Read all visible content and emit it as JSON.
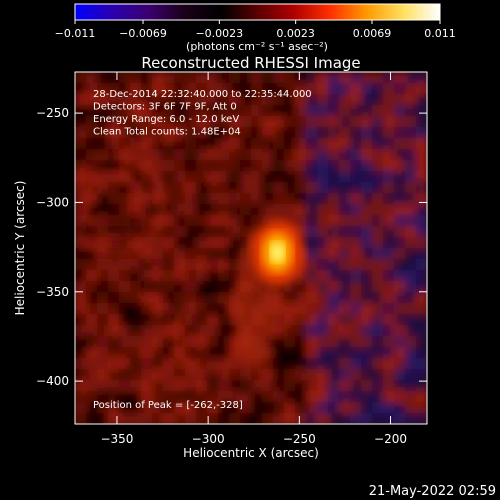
{
  "colorbar": {
    "ticks": [
      "-0.011",
      "-0.0069",
      "-0.0023",
      "0.0023",
      "0.0069",
      "0.011"
    ],
    "unit_label": "(photons cm⁻² s⁻¹ asec⁻²)",
    "colors": [
      "#0000ff",
      "#2a00b0",
      "#3a0070",
      "#1a0018",
      "#000000",
      "#5a0000",
      "#b00000",
      "#ff3000",
      "#ff9a00",
      "#ffe060",
      "#ffffff"
    ],
    "range": [
      -0.011,
      0.011
    ]
  },
  "chart_data": {
    "type": "heatmap",
    "title": "Reconstructed RHESSI Image",
    "xlabel": "Heliocentric X (arcsec)",
    "ylabel": "Heliocentric Y (arcsec)",
    "xlim": [
      -373,
      -180
    ],
    "ylim": [
      -424,
      -227
    ],
    "x_ticks": [
      -350,
      -300,
      -250,
      -200
    ],
    "y_ticks": [
      -250,
      -300,
      -350,
      -400
    ],
    "info_lines": [
      "28-Dec-2014 22:32:40.000 to 22:35:44.000",
      "Detectors: 3F 6F 7F 9F, Att 0",
      "Energy Range: 6.0 - 12.0 keV",
      "Clean     Total counts: 1.48E+04"
    ],
    "peak_label": "Position of Peak = [-262,-328]",
    "peak": {
      "x": -262,
      "y": -328
    }
  },
  "footer": {
    "timestamp": "21-May-2022 02:59"
  }
}
